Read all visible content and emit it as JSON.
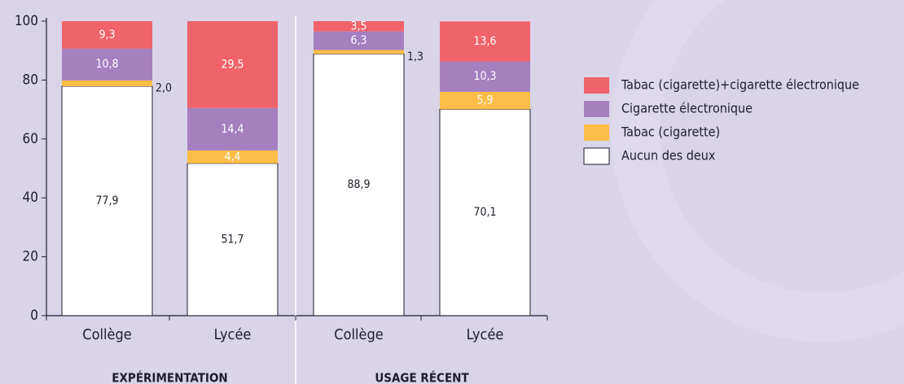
{
  "chart_data": {
    "type": "stacked_bar",
    "categories": [
      "Collège",
      "Lycée",
      "Collège",
      "Lycée"
    ],
    "groups": [
      "EXPÉRIMENTATION",
      "USAGE RÉCENT"
    ],
    "series": [
      {
        "name": "Aucun des deux",
        "color": "#ffffff",
        "values": [
          77.9,
          51.7,
          88.9,
          70.1
        ],
        "value_labels": [
          "77,9",
          "51,7",
          "88,9",
          "70,1"
        ]
      },
      {
        "name": "Tabac (cigarette)",
        "color": "#fdbd46",
        "values": [
          2.0,
          4.4,
          1.3,
          5.9
        ],
        "value_labels": [
          "2,0",
          "4,4",
          "1,3",
          "5,9"
        ]
      },
      {
        "name": "Cigarette électronique",
        "color": "#a67fbe",
        "values": [
          10.8,
          14.4,
          6.3,
          10.3
        ],
        "value_labels": [
          "10,8",
          "14,4",
          "6,3",
          "10,3"
        ]
      },
      {
        "name": "Tabac (cigarette)+cigarette électronique",
        "color": "#f0636a",
        "values": [
          9.3,
          29.5,
          3.5,
          13.6
        ],
        "value_labels": [
          "9,3",
          "29,5",
          "3,5",
          "13,6"
        ]
      }
    ],
    "ylim": [
      0,
      100
    ],
    "yticks": [
      0,
      20,
      40,
      60,
      80,
      100
    ]
  }
}
